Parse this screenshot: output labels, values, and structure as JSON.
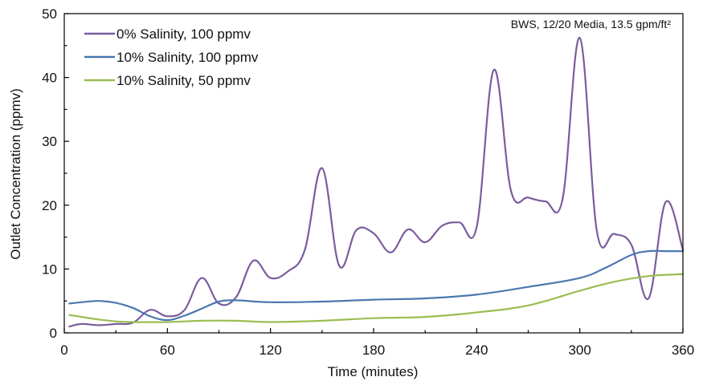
{
  "chart_data": {
    "type": "line",
    "title": "",
    "annotation": "BWS, 12/20 Media, 13.5 gpm/ft²",
    "xlabel": "Time (minutes)",
    "ylabel": "Outlet Concentration (ppmv)",
    "xlim": [
      0,
      360
    ],
    "ylim": [
      0,
      50
    ],
    "xticks": [
      0,
      60,
      120,
      180,
      240,
      300,
      360
    ],
    "yticks": [
      0,
      10,
      20,
      30,
      40,
      50
    ],
    "grid": false,
    "legend_position": "top-left",
    "series": [
      {
        "name": "0% Salinity, 100 ppmv",
        "color": "#7b5c9e",
        "x": [
          0,
          10,
          20,
          30,
          40,
          50,
          60,
          70,
          80,
          90,
          100,
          110,
          120,
          130,
          140,
          150,
          160,
          170,
          180,
          190,
          200,
          210,
          220,
          230,
          240,
          250,
          260,
          270,
          280,
          290,
          300,
          310,
          320,
          330,
          340,
          350,
          360
        ],
        "y": [
          1.0,
          1.4,
          1.2,
          1.4,
          1.6,
          3.6,
          2.6,
          3.6,
          8.6,
          4.6,
          5.6,
          11.3,
          8.6,
          9.6,
          13.0,
          25.8,
          10.5,
          16.1,
          15.6,
          12.6,
          16.2,
          14.2,
          16.8,
          17.3,
          16.6,
          41.2,
          22.2,
          21.2,
          20.6,
          21.0,
          46.2,
          15.8,
          15.5,
          13.8,
          5.4,
          20.5,
          13.0
        ]
      },
      {
        "name": "10% Salinity, 100 ppmv",
        "color": "#4a78b0",
        "x": [
          0,
          10,
          20,
          30,
          40,
          50,
          60,
          70,
          80,
          90,
          100,
          120,
          150,
          180,
          210,
          240,
          270,
          300,
          315,
          330,
          340,
          350,
          360
        ],
        "y": [
          4.6,
          4.8,
          5.0,
          4.7,
          3.9,
          2.6,
          2.0,
          2.7,
          3.8,
          4.9,
          5.1,
          4.8,
          4.9,
          5.2,
          5.4,
          6.0,
          7.2,
          8.6,
          10.2,
          12.2,
          12.8,
          12.8,
          12.8
        ]
      },
      {
        "name": "10% Salinity, 50 ppmv",
        "color": "#9bbd52",
        "x": [
          0,
          10,
          20,
          30,
          40,
          60,
          80,
          100,
          120,
          150,
          180,
          210,
          240,
          270,
          300,
          320,
          340,
          360
        ],
        "y": [
          2.8,
          2.5,
          2.1,
          1.8,
          1.7,
          1.7,
          1.9,
          1.9,
          1.7,
          1.9,
          2.3,
          2.5,
          3.2,
          4.3,
          6.6,
          8.0,
          8.9,
          9.2
        ]
      }
    ]
  }
}
